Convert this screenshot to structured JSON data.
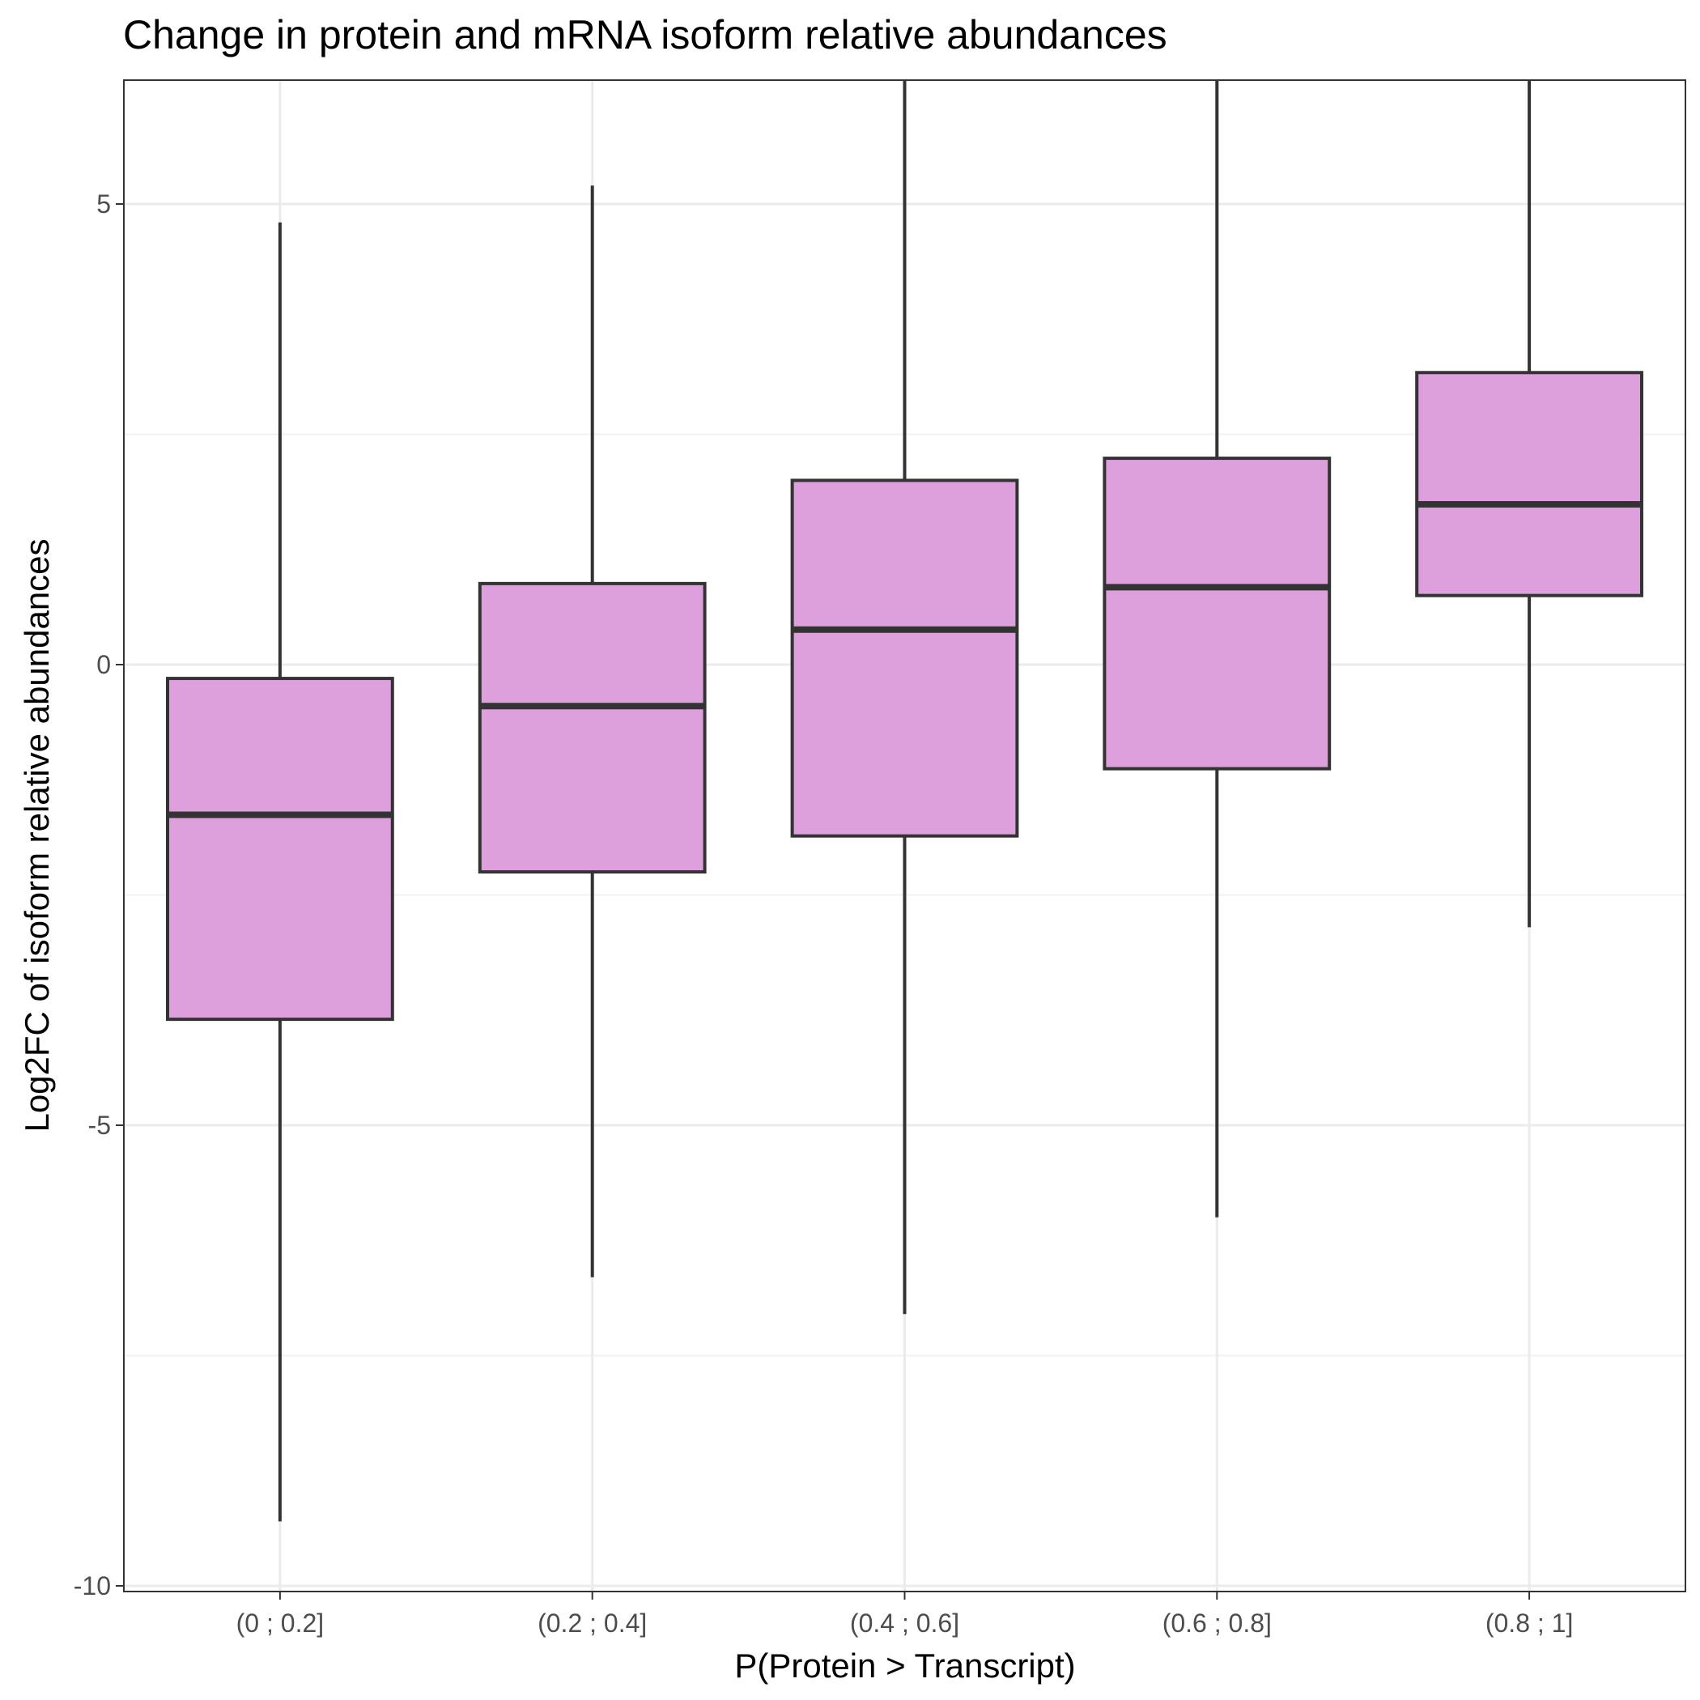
{
  "chart_data": {
    "type": "boxplot",
    "title": "Change in protein and mRNA isoform relative abundances",
    "xlabel": "P(Protein > Transcript)",
    "ylabel": "Log2FC of isoform relative abundances",
    "categories": [
      "(0 ; 0.2]",
      "(0.2 ; 0.4]",
      "(0.4 ; 0.6]",
      "(0.6 ; 0.8]",
      "(0.8 ; 1]"
    ],
    "boxes": [
      {
        "category": "(0 ; 0.2]",
        "whisker_low": -9.3,
        "q1": -3.85,
        "median": -1.63,
        "q3": -0.15,
        "whisker_high": 4.8
      },
      {
        "category": "(0.2 ; 0.4]",
        "whisker_low": -6.65,
        "q1": -2.25,
        "median": -0.45,
        "q3": 0.88,
        "whisker_high": 5.2
      },
      {
        "category": "(0.4 ; 0.6]",
        "whisker_low": -7.05,
        "q1": -1.86,
        "median": 0.38,
        "q3": 2.0,
        "whisker_high": 6.5
      },
      {
        "category": "(0.6 ; 0.8]",
        "whisker_low": -6.0,
        "q1": -1.13,
        "median": 0.84,
        "q3": 2.24,
        "whisker_high": 6.5
      },
      {
        "category": "(0.8 ; 1]",
        "whisker_low": -2.85,
        "q1": 0.75,
        "median": 1.74,
        "q3": 3.17,
        "whisker_high": 6.5
      }
    ],
    "y_ticks": [
      {
        "value": 5,
        "label": "5"
      },
      {
        "value": 0,
        "label": "0"
      },
      {
        "value": -5,
        "label": "-5"
      },
      {
        "value": -10,
        "label": "-10"
      }
    ],
    "y_minor_grid": [
      2.5,
      -2.5,
      -7.5
    ],
    "ylim": [
      -10.2,
      6.6
    ],
    "grid": true,
    "legend": "none",
    "colors": {
      "box_fill": "#dda0dd",
      "box_stroke": "#333333",
      "grid_major": "#ebebeb",
      "grid_minor": "#f2f2f2",
      "panel_border": "#333333"
    }
  }
}
